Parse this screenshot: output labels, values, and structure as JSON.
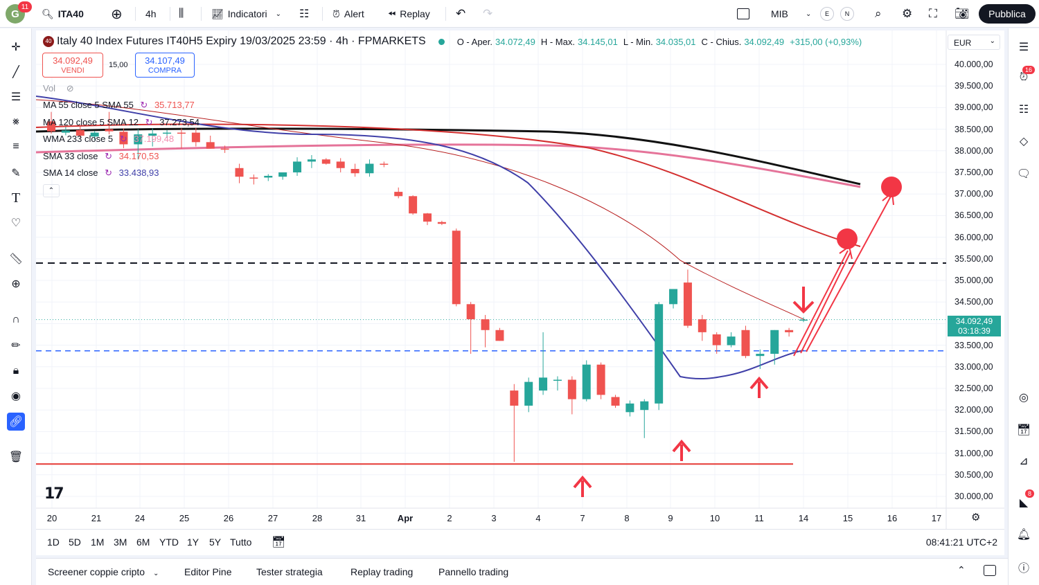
{
  "topbar": {
    "avatar_letter": "G",
    "avatar_badge": "11",
    "symbol": "ITA40",
    "interval": "4h",
    "indicators_label": "Indicatori",
    "alert_label": "Alert",
    "replay_label": "Replay",
    "watch_symbol": "MIB",
    "circle_e": "E",
    "circle_n": "N",
    "publish_label": "Pubblica"
  },
  "legend": {
    "title": "Italy 40 Index Futures IT40H5 Expiry 19/03/2025 23:59 · 4h · FPMARKETS",
    "logo": "40",
    "o_label": "O - Aper.",
    "o_value": "34.072,49",
    "h_label": "H - Max.",
    "h_value": "34.145,01",
    "l_label": "L - Min.",
    "l_value": "34.035,01",
    "c_label": "C - Chius.",
    "c_value": "34.092,49",
    "change": "+315,00 (+0,93%)",
    "currency": "EUR"
  },
  "trade": {
    "sell_price": "34.092,49",
    "sell_label": "VENDI",
    "spread": "15,00",
    "buy_price": "34.107,49",
    "buy_label": "COMPRA"
  },
  "indicators": [
    {
      "name": "Vol",
      "value": ""
    },
    {
      "name": "MA 55 close 5 SMA 55",
      "value": "35.713,77",
      "color": "#ef5350"
    },
    {
      "name": "MA 120 close 5 SMA 12",
      "value": "37.273,54",
      "color": "#131722"
    },
    {
      "name": "WMA 233 close 5",
      "value": "37.199,48",
      "color": "#f48fb1"
    },
    {
      "name": "SMA 33 close",
      "value": "34.170,53",
      "color": "#ef5350"
    },
    {
      "name": "SMA 14 close",
      "value": "33.438,93",
      "color": "#3f3fa8"
    }
  ],
  "price_axis": [
    "40.000,00",
    "39.500,00",
    "39.000,00",
    "38.500,00",
    "38.000,00",
    "37.500,00",
    "37.000,00",
    "36.500,00",
    "36.000,00",
    "35.500,00",
    "35.000,00",
    "34.500,00",
    "33.500,00",
    "33.000,00",
    "32.500,00",
    "32.000,00",
    "31.500,00",
    "31.000,00",
    "30.500,00",
    "30.000,00"
  ],
  "current_price": {
    "value": "34.092,49",
    "countdown": "03:18:39"
  },
  "time_axis": [
    "20",
    "21",
    "24",
    "25",
    "26",
    "27",
    "28",
    "31",
    "Apr",
    "2",
    "3",
    "4",
    "7",
    "8",
    "9",
    "10",
    "11",
    "14",
    "15",
    "16",
    "17"
  ],
  "ranges": [
    "1D",
    "5D",
    "1M",
    "3M",
    "6M",
    "YTD",
    "1Y",
    "5Y",
    "Tutto"
  ],
  "clock": "08:41:21 UTC+2",
  "bottom_tabs": [
    "Screener coppie cripto",
    "Editor Pine",
    "Tester strategia",
    "Replay trading",
    "Pannello trading"
  ],
  "right_badges": {
    "alerts": "16",
    "notifications": "8"
  },
  "colors": {
    "up": "#26a69a",
    "down": "#ef5350",
    "accent": "#2962ff",
    "annotation": "#f23645"
  },
  "chart_data": {
    "type": "candlestick",
    "x": [
      "20",
      "21",
      "24",
      "25",
      "26",
      "27",
      "28",
      "31",
      "Apr",
      "2",
      "3",
      "4",
      "7",
      "8",
      "9",
      "10",
      "11",
      "14"
    ],
    "candles": [
      {
        "o": 38680,
        "h": 38900,
        "l": 38400,
        "c": 38450
      },
      {
        "o": 38420,
        "h": 38550,
        "l": 38360,
        "c": 38470
      },
      {
        "o": 38480,
        "h": 38560,
        "l": 38300,
        "c": 38350
      },
      {
        "o": 38330,
        "h": 38460,
        "l": 38250,
        "c": 38420
      },
      {
        "o": 38500,
        "h": 38900,
        "l": 38380,
        "c": 38450
      },
      {
        "o": 38440,
        "h": 38520,
        "l": 38060,
        "c": 38150
      },
      {
        "o": 38150,
        "h": 38500,
        "l": 37800,
        "c": 38380
      },
      {
        "o": 38350,
        "h": 38520,
        "l": 38100,
        "c": 38400
      },
      {
        "o": 38400,
        "h": 38480,
        "l": 38300,
        "c": 38420
      },
      {
        "o": 38420,
        "h": 38520,
        "l": 38050,
        "c": 38400
      },
      {
        "o": 38420,
        "h": 38530,
        "l": 38100,
        "c": 38200
      },
      {
        "o": 38200,
        "h": 38350,
        "l": 38050,
        "c": 38050
      },
      {
        "o": 38050,
        "h": 38120,
        "l": 37950,
        "c": 38030
      },
      {
        "o": 37600,
        "h": 37700,
        "l": 37250,
        "c": 37400
      },
      {
        "o": 37380,
        "h": 37450,
        "l": 37220,
        "c": 37360
      },
      {
        "o": 37380,
        "h": 37460,
        "l": 37300,
        "c": 37420
      },
      {
        "o": 37400,
        "h": 37500,
        "l": 37330,
        "c": 37500
      },
      {
        "o": 37500,
        "h": 37850,
        "l": 37420,
        "c": 37750
      },
      {
        "o": 37750,
        "h": 37900,
        "l": 37600,
        "c": 37800
      },
      {
        "o": 37800,
        "h": 37830,
        "l": 37680,
        "c": 37700
      },
      {
        "o": 37750,
        "h": 37830,
        "l": 37500,
        "c": 37600
      },
      {
        "o": 37580,
        "h": 37700,
        "l": 37400,
        "c": 37480
      },
      {
        "o": 37480,
        "h": 37800,
        "l": 37400,
        "c": 37700
      },
      {
        "o": 37700,
        "h": 37750,
        "l": 37620,
        "c": 37680
      },
      {
        "o": 37050,
        "h": 37150,
        "l": 36900,
        "c": 36950
      },
      {
        "o": 36950,
        "h": 36970,
        "l": 36520,
        "c": 36550
      },
      {
        "o": 36550,
        "h": 36560,
        "l": 36280,
        "c": 36360
      },
      {
        "o": 36350,
        "h": 36380,
        "l": 36280,
        "c": 36310
      },
      {
        "o": 36150,
        "h": 36200,
        "l": 34400,
        "c": 34450
      },
      {
        "o": 34450,
        "h": 34500,
        "l": 33300,
        "c": 34100
      },
      {
        "o": 34100,
        "h": 34200,
        "l": 33450,
        "c": 33850
      },
      {
        "o": 33850,
        "h": 33900,
        "l": 33600,
        "c": 33600
      },
      {
        "o": 32450,
        "h": 32600,
        "l": 30800,
        "c": 32100
      },
      {
        "o": 32100,
        "h": 32750,
        "l": 31950,
        "c": 32650
      },
      {
        "o": 32450,
        "h": 33800,
        "l": 32350,
        "c": 32750
      },
      {
        "o": 32700,
        "h": 32780,
        "l": 32450,
        "c": 32700
      },
      {
        "o": 32700,
        "h": 32780,
        "l": 31900,
        "c": 32250
      },
      {
        "o": 32250,
        "h": 33150,
        "l": 32200,
        "c": 33050
      },
      {
        "o": 33050,
        "h": 33100,
        "l": 32250,
        "c": 32350
      },
      {
        "o": 32300,
        "h": 32350,
        "l": 32050,
        "c": 32100
      },
      {
        "o": 31950,
        "h": 32220,
        "l": 31850,
        "c": 32150
      },
      {
        "o": 32000,
        "h": 32250,
        "l": 31350,
        "c": 32200
      },
      {
        "o": 32150,
        "h": 34500,
        "l": 32000,
        "c": 34450
      },
      {
        "o": 34450,
        "h": 34800,
        "l": 34350,
        "c": 34800
      },
      {
        "o": 34950,
        "h": 35250,
        "l": 33900,
        "c": 33950
      },
      {
        "o": 34100,
        "h": 34200,
        "l": 33600,
        "c": 33800
      },
      {
        "o": 33750,
        "h": 33800,
        "l": 33300,
        "c": 33500
      },
      {
        "o": 33500,
        "h": 33800,
        "l": 33450,
        "c": 33700
      },
      {
        "o": 33850,
        "h": 33950,
        "l": 33200,
        "c": 33250
      },
      {
        "o": 33250,
        "h": 33400,
        "l": 32950,
        "c": 33300
      },
      {
        "o": 33300,
        "h": 33850,
        "l": 33050,
        "c": 33850
      },
      {
        "o": 33850,
        "h": 33900,
        "l": 33700,
        "c": 33800
      },
      {
        "o": 34072,
        "h": 34145,
        "l": 34035,
        "c": 34092
      }
    ],
    "levels": {
      "resistance_dashed": 35400,
      "support_dashed": 33370,
      "support_line": 30750
    },
    "ylim": [
      29900,
      40250
    ]
  }
}
